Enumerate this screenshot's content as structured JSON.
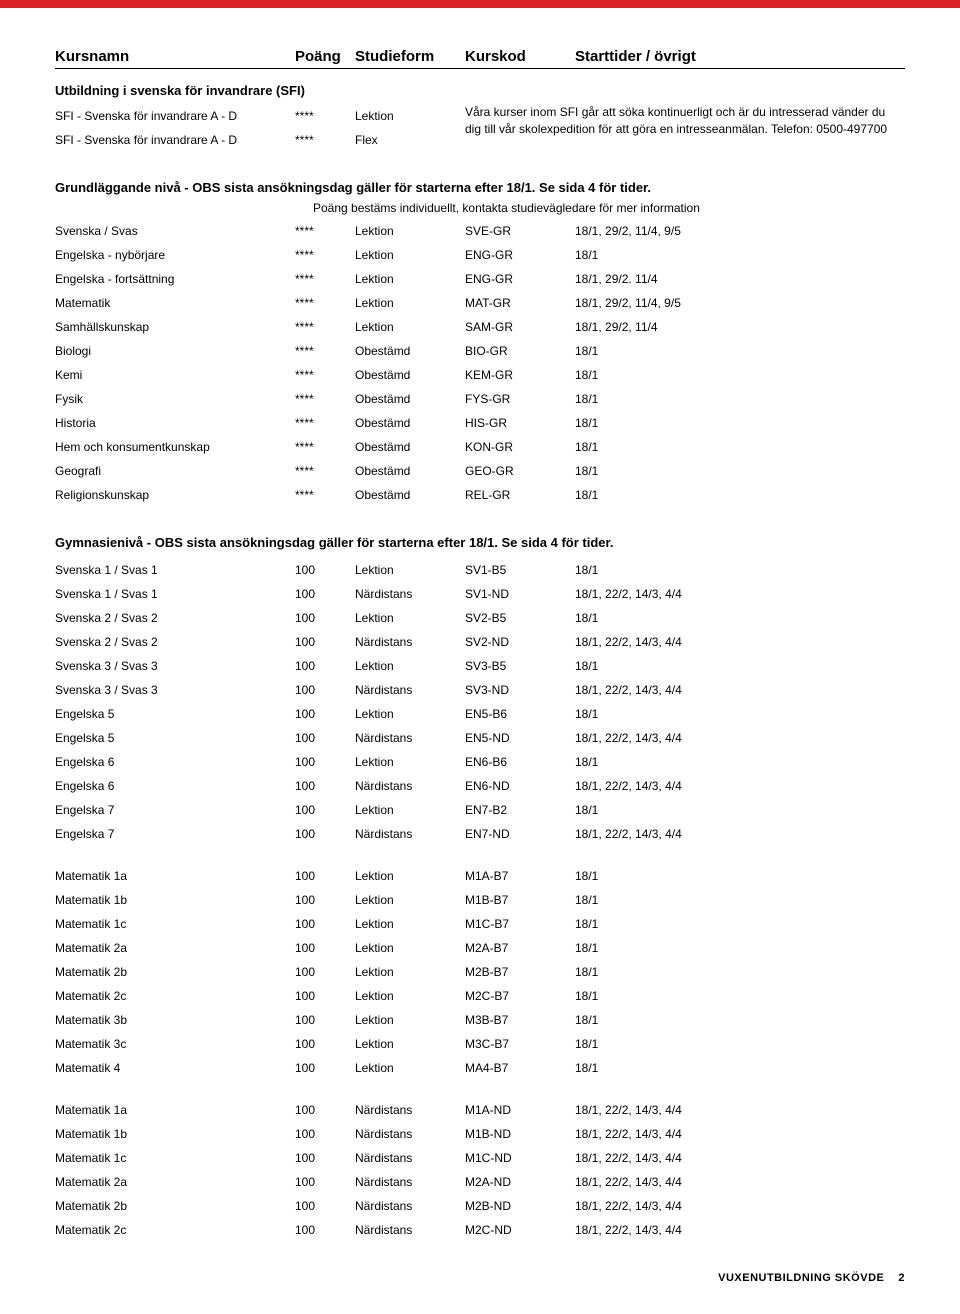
{
  "colors": {
    "accent": "#da2128",
    "text": "#000000",
    "bg": "#ffffff"
  },
  "header": {
    "kursnamn": "Kursnamn",
    "poang": "Poäng",
    "studieform": "Studieform",
    "kurskod": "Kurskod",
    "start": "Starttider / övrigt"
  },
  "sfi": {
    "title": "Utbildning i svenska för invandrare (SFI)",
    "rows": [
      {
        "name": "SFI - Svenska för invandrare A - D",
        "poang": "****",
        "form": "Lektion"
      },
      {
        "name": "SFI - Svenska för invandrare A - D",
        "poang": "****",
        "form": "Flex"
      }
    ],
    "note_line1": "Våra kurser inom SFI går att söka kontinuerligt och är du intresserad vänder du",
    "note_line2": "dig till vår skolexpedition för att göra en intresseanmälan. Telefon: 0500-497700"
  },
  "grund": {
    "title": "Grundläggande nivå - OBS sista ansökningsdag gäller för starterna efter 18/1. Se sida 4 för tider.",
    "subnote": "Poäng bestäms individuellt, kontakta studievägledare för mer information",
    "rows": [
      {
        "name": "Svenska / Svas",
        "poang": "****",
        "form": "Lektion",
        "kod": "SVE-GR",
        "start": "18/1, 29/2, 11/4, 9/5"
      },
      {
        "name": "Engelska  - nybörjare",
        "poang": "****",
        "form": "Lektion",
        "kod": "ENG-GR",
        "start": "18/1"
      },
      {
        "name": "Engelska  - fortsättning",
        "poang": "****",
        "form": "Lektion",
        "kod": "ENG-GR",
        "start": "18/1, 29/2. 11/4"
      },
      {
        "name": "Matematik",
        "poang": "****",
        "form": "Lektion",
        "kod": "MAT-GR",
        "start": "18/1, 29/2, 11/4, 9/5"
      },
      {
        "name": "Samhällskunskap",
        "poang": "****",
        "form": "Lektion",
        "kod": "SAM-GR",
        "start": "18/1, 29/2, 11/4"
      },
      {
        "name": "Biologi",
        "poang": "****",
        "form": "Obestämd",
        "kod": "BIO-GR",
        "start": "18/1"
      },
      {
        "name": "Kemi",
        "poang": "****",
        "form": "Obestämd",
        "kod": "KEM-GR",
        "start": "18/1"
      },
      {
        "name": "Fysik",
        "poang": "****",
        "form": "Obestämd",
        "kod": "FYS-GR",
        "start": "18/1"
      },
      {
        "name": "Historia",
        "poang": "****",
        "form": "Obestämd",
        "kod": "HIS-GR",
        "start": "18/1"
      },
      {
        "name": "Hem och konsumentkunskap",
        "poang": "****",
        "form": "Obestämd",
        "kod": "KON-GR",
        "start": "18/1"
      },
      {
        "name": "Geografi",
        "poang": "****",
        "form": "Obestämd",
        "kod": "GEO-GR",
        "start": "18/1"
      },
      {
        "name": "Religionskunskap",
        "poang": "****",
        "form": "Obestämd",
        "kod": "REL-GR",
        "start": "18/1"
      }
    ]
  },
  "gym": {
    "title": "Gymnasienivå - OBS sista ansökningsdag gäller för starterna efter 18/1. Se sida 4 för tider.",
    "block1": [
      {
        "name": "Svenska 1 / Svas 1",
        "poang": "100",
        "form": "Lektion",
        "kod": "SV1-B5",
        "start": "18/1"
      },
      {
        "name": "Svenska 1 / Svas 1",
        "poang": "100",
        "form": "Närdistans",
        "kod": "SV1-ND",
        "start": "18/1, 22/2, 14/3, 4/4"
      },
      {
        "name": "Svenska 2 / Svas 2",
        "poang": "100",
        "form": "Lektion",
        "kod": "SV2-B5",
        "start": "18/1"
      },
      {
        "name": "Svenska 2 / Svas 2",
        "poang": "100",
        "form": "Närdistans",
        "kod": "SV2-ND",
        "start": "18/1, 22/2, 14/3, 4/4"
      },
      {
        "name": "Svenska 3 / Svas 3",
        "poang": "100",
        "form": "Lektion",
        "kod": "SV3-B5",
        "start": "18/1"
      },
      {
        "name": "Svenska 3 / Svas 3",
        "poang": "100",
        "form": "Närdistans",
        "kod": "SV3-ND",
        "start": "18/1, 22/2, 14/3, 4/4"
      },
      {
        "name": "Engelska 5",
        "poang": "100",
        "form": "Lektion",
        "kod": "EN5-B6",
        "start": "18/1"
      },
      {
        "name": "Engelska 5",
        "poang": "100",
        "form": "Närdistans",
        "kod": "EN5-ND",
        "start": "18/1, 22/2, 14/3, 4/4"
      },
      {
        "name": "Engelska 6",
        "poang": "100",
        "form": "Lektion",
        "kod": "EN6-B6",
        "start": "18/1"
      },
      {
        "name": "Engelska 6",
        "poang": "100",
        "form": "Närdistans",
        "kod": "EN6-ND",
        "start": "18/1, 22/2, 14/3, 4/4"
      },
      {
        "name": "Engelska 7",
        "poang": "100",
        "form": "Lektion",
        "kod": "EN7-B2",
        "start": "18/1"
      },
      {
        "name": "Engelska 7",
        "poang": "100",
        "form": "Närdistans",
        "kod": "EN7-ND",
        "start": "18/1, 22/2, 14/3, 4/4"
      }
    ],
    "block2": [
      {
        "name": "Matematik 1a",
        "poang": "100",
        "form": "Lektion",
        "kod": "M1A-B7",
        "start": "18/1"
      },
      {
        "name": "Matematik 1b",
        "poang": "100",
        "form": "Lektion",
        "kod": "M1B-B7",
        "start": "18/1"
      },
      {
        "name": "Matematik 1c",
        "poang": "100",
        "form": "Lektion",
        "kod": "M1C-B7",
        "start": "18/1"
      },
      {
        "name": "Matematik 2a",
        "poang": "100",
        "form": "Lektion",
        "kod": "M2A-B7",
        "start": "18/1"
      },
      {
        "name": "Matematik 2b",
        "poang": "100",
        "form": "Lektion",
        "kod": "M2B-B7",
        "start": "18/1"
      },
      {
        "name": "Matematik 2c",
        "poang": "100",
        "form": "Lektion",
        "kod": "M2C-B7",
        "start": "18/1"
      },
      {
        "name": "Matematik 3b",
        "poang": "100",
        "form": "Lektion",
        "kod": "M3B-B7",
        "start": "18/1"
      },
      {
        "name": "Matematik 3c",
        "poang": "100",
        "form": "Lektion",
        "kod": "M3C-B7",
        "start": "18/1"
      },
      {
        "name": "Matematik 4",
        "poang": "100",
        "form": "Lektion",
        "kod": "MA4-B7",
        "start": "18/1"
      }
    ],
    "block3": [
      {
        "name": "Matematik 1a",
        "poang": "100",
        "form": "Närdistans",
        "kod": "M1A-ND",
        "start": "18/1, 22/2, 14/3, 4/4"
      },
      {
        "name": "Matematik 1b",
        "poang": "100",
        "form": "Närdistans",
        "kod": "M1B-ND",
        "start": "18/1, 22/2, 14/3, 4/4"
      },
      {
        "name": "Matematik 1c",
        "poang": "100",
        "form": "Närdistans",
        "kod": "M1C-ND",
        "start": "18/1, 22/2, 14/3, 4/4"
      },
      {
        "name": "Matematik 2a",
        "poang": "100",
        "form": "Närdistans",
        "kod": "M2A-ND",
        "start": "18/1, 22/2, 14/3, 4/4"
      },
      {
        "name": "Matematik 2b",
        "poang": "100",
        "form": "Närdistans",
        "kod": "M2B-ND",
        "start": "18/1, 22/2, 14/3, 4/4"
      },
      {
        "name": "Matematik 2c",
        "poang": "100",
        "form": "Närdistans",
        "kod": "M2C-ND",
        "start": "18/1, 22/2, 14/3, 4/4"
      }
    ]
  },
  "footer": {
    "text": "VUXENUTBILDNING SKÖVDE",
    "page": "2"
  }
}
